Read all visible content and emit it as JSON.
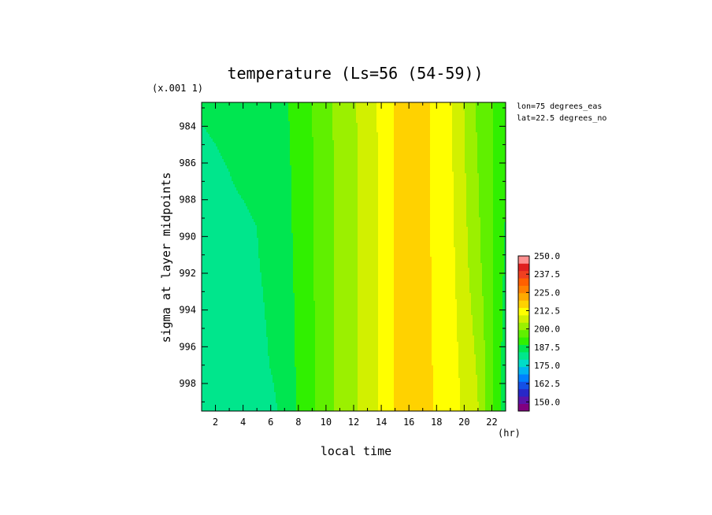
{
  "chart_data": {
    "type": "heatmap",
    "title": "temperature (Ls=56 (54-59))",
    "xlabel": "local time",
    "x_units": "(hr)",
    "ylabel": "sigma at layer midpoints",
    "y_scale_note": "(x.001 1)",
    "annotations": [
      "lon=75 degrees_eas",
      "lat=22.5 degrees_no"
    ],
    "xlim": [
      1,
      23
    ],
    "ylim": [
      999.5,
      982.7
    ],
    "x_ticks": [
      2,
      4,
      6,
      8,
      10,
      12,
      14,
      16,
      18,
      20,
      22
    ],
    "y_ticks": [
      984,
      986,
      988,
      990,
      992,
      994,
      996,
      998
    ],
    "x": [
      1,
      3,
      5,
      7,
      9,
      11,
      13,
      15,
      17,
      19,
      21,
      23
    ],
    "y": [
      982.7,
      985,
      988,
      991,
      994,
      997,
      999.5
    ],
    "z": [
      [
        194,
        194.5,
        195.5,
        199,
        206.5,
        215,
        221.5,
        232,
        233,
        226,
        211,
        202
      ],
      [
        193.5,
        194,
        195,
        198.5,
        206,
        214.5,
        221,
        232,
        233,
        226,
        212,
        201
      ],
      [
        193,
        193.5,
        194,
        198,
        206,
        214.5,
        221,
        232,
        233,
        226.5,
        213,
        200
      ],
      [
        192.5,
        193,
        193.5,
        197.5,
        206,
        214.5,
        221,
        232,
        233,
        227,
        214,
        199
      ],
      [
        191.5,
        192,
        192.5,
        197,
        205.5,
        214.5,
        221,
        232,
        233,
        227.5,
        216,
        198
      ],
      [
        190.5,
        190.5,
        191.5,
        196.5,
        205.5,
        214.5,
        221,
        232,
        233,
        228,
        218,
        196.5
      ],
      [
        189,
        188,
        187.5,
        196,
        205,
        214.5,
        221,
        232,
        233,
        228.5,
        219,
        196
      ]
    ],
    "colorbar": {
      "min": 143.75,
      "max": 250,
      "step": 6.25,
      "labels": [
        "250.0",
        "237.5",
        "225.0",
        "212.5",
        "200.0",
        "187.5",
        "175.0",
        "162.5",
        "150.0"
      ],
      "colors": [
        "#800080",
        "#5a14aa",
        "#2828c8",
        "#1450e6",
        "#0080ff",
        "#00b4f0",
        "#00dcc8",
        "#00e68c",
        "#00e650",
        "#30f000",
        "#60f000",
        "#9bf000",
        "#d2f000",
        "#ffff00",
        "#ffd200",
        "#ffaa00",
        "#ff8000",
        "#ff6000",
        "#f04020",
        "#e02020",
        "#ff9090"
      ]
    }
  }
}
